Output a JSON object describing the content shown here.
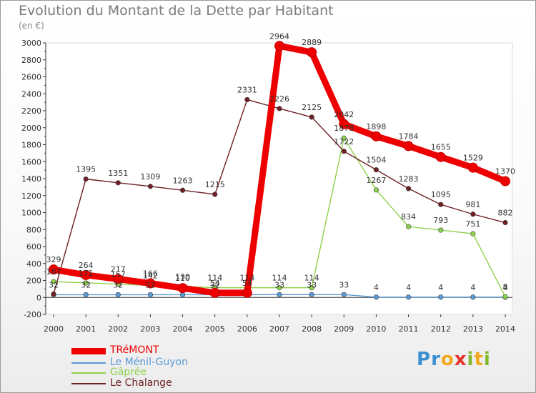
{
  "title": "Evolution du Montant de la Dette par Habitant",
  "subtitle": "(en €)",
  "logo": {
    "letters": [
      "P",
      "r",
      "o",
      "x",
      "i",
      "t",
      "i"
    ],
    "colors": [
      "#3a8fd1",
      "#3a8fd1",
      "#f2a81d",
      "#e2342b",
      "#7fba2d",
      "#f2a81d",
      "#7fba2d"
    ]
  },
  "chart_data": {
    "type": "line",
    "title": "Evolution du Montant de la Dette par Habitant",
    "ylabel": "(en €)",
    "xlabel": "",
    "ylim": [
      -200,
      3000
    ],
    "ytick_step": 200,
    "grid": false,
    "legend_position": "bottom-left",
    "categories": [
      "2000",
      "2001",
      "2002",
      "2003",
      "2004",
      "2005",
      "2006",
      "2007",
      "2008",
      "2009",
      "2010",
      "2011",
      "2012",
      "2013",
      "2014"
    ],
    "series": [
      {
        "name": "Le Ménil-Guyon",
        "color": "#5b9bd5",
        "values": [
          32,
          32,
          32,
          32,
          32,
          32,
          32,
          33,
          33,
          33,
          4,
          4,
          4,
          4,
          4
        ],
        "labels": [
          "32",
          "32",
          "32",
          "32",
          "",
          "32",
          "",
          "33",
          "33",
          "33",
          "4",
          "4",
          "4",
          "4",
          "4"
        ],
        "emphasis": false
      },
      {
        "name": "Gâprée",
        "color": "#8ed14b",
        "values": [
          187,
          171,
          157,
          142,
          130,
          114,
          114,
          114,
          114,
          1878,
          1267,
          834,
          793,
          751,
          8
        ],
        "labels": [
          "187",
          "171",
          "157",
          "142",
          "130",
          "114",
          "114",
          "114",
          "114",
          "1878",
          "1267",
          "834",
          "793",
          "751",
          "8"
        ],
        "emphasis": false
      },
      {
        "name": "Le Chalange",
        "color": "#6e1f24",
        "values": [
          40,
          1395,
          1351,
          1309,
          1263,
          1215,
          2331,
          2226,
          2125,
          1722,
          1504,
          1283,
          1095,
          981,
          882
        ],
        "labels": [
          "",
          "1395",
          "1351",
          "1309",
          "1263",
          "1215",
          "2331",
          "2226",
          "2125",
          "1722",
          "1504",
          "1283",
          "1095",
          "981",
          "882"
        ],
        "emphasis": false
      },
      {
        "name": "TRéMONT",
        "color": "#ee0000",
        "values": [
          329,
          264,
          217,
          166,
          110,
          54,
          54,
          2964,
          2889,
          2042,
          1898,
          1784,
          1655,
          1529,
          1370
        ],
        "labels": [
          "329",
          "264",
          "217",
          "166",
          "110",
          "54",
          "54",
          "2964",
          "2889",
          "2042",
          "1898",
          "1784",
          "1655",
          "1529",
          "1370"
        ],
        "emphasis": true
      }
    ],
    "legend_order": [
      "TRéMONT",
      "Le Ménil-Guyon",
      "Gâprée",
      "Le Chalange"
    ]
  }
}
